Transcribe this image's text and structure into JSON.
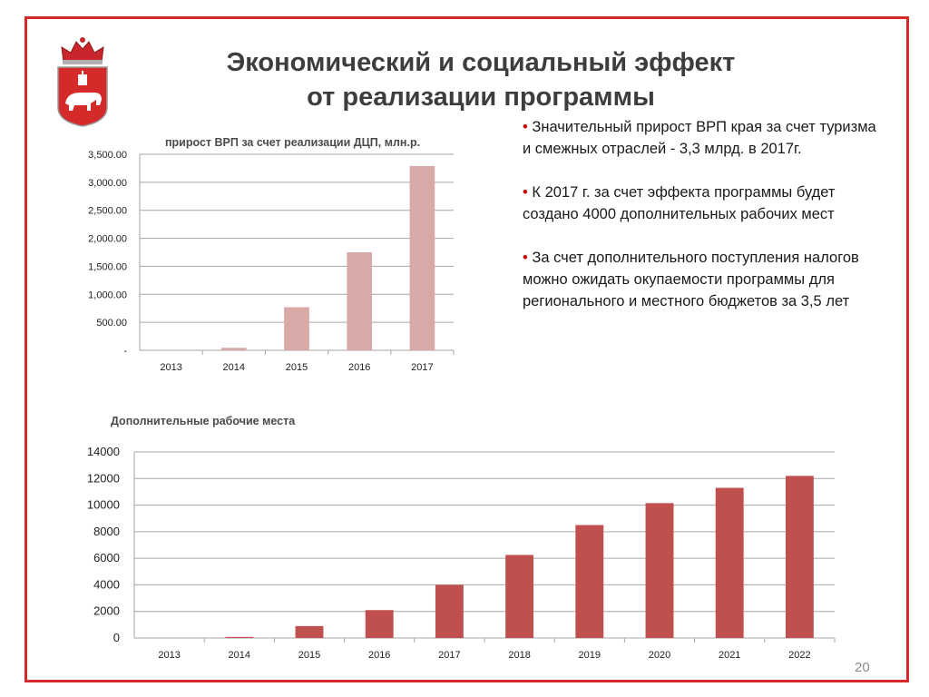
{
  "slide": {
    "title_line1": "Экономический и социальный эффект",
    "title_line2": "от реализации программы",
    "page_number": "20",
    "accent_color": "#d42a2a"
  },
  "bullets": [
    "Значительный прирост ВРП края за счет туризма и смежных отраслей  - 3,3 млрд. в 2017г.",
    "К 2017 г. за счет эффекта программы будет создано 4000 дополнительных рабочих мест",
    " За счет дополнительного поступления налогов можно ожидать окупаемости программы для регионального и местного бюджетов  за 3,5 лет"
  ],
  "chart_data": [
    {
      "type": "bar",
      "title": "прирост ВРП за счет реализации ДЦП, млн.р.",
      "categories": [
        "2013",
        "2014",
        "2015",
        "2016",
        "2017"
      ],
      "values": [
        5,
        45,
        770,
        1750,
        3290
      ],
      "ylim": [
        0,
        3500
      ],
      "yticks": [
        0,
        500,
        1000,
        1500,
        2000,
        2500,
        3000,
        3500
      ],
      "ytick_labels": [
        "-",
        "500.00",
        "1,000.00",
        "1,500.00",
        "2,000.00",
        "2,500.00",
        "3,000.00",
        "3,500.00"
      ],
      "color": "#d9a9a8",
      "grid": true
    },
    {
      "type": "bar",
      "title": "Дополнительные рабочие места",
      "categories": [
        "2013",
        "2014",
        "2015",
        "2016",
        "2017",
        "2018",
        "2019",
        "2020",
        "2021",
        "2022"
      ],
      "values": [
        0,
        80,
        900,
        2100,
        4000,
        6250,
        8500,
        10150,
        11300,
        12200
      ],
      "ylim": [
        0,
        14000
      ],
      "yticks": [
        0,
        2000,
        4000,
        6000,
        8000,
        10000,
        12000,
        14000
      ],
      "ytick_labels": [
        "0",
        "2000",
        "4000",
        "6000",
        "8000",
        "10000",
        "12000",
        "14000"
      ],
      "color": "#c0504d",
      "grid": true
    }
  ]
}
